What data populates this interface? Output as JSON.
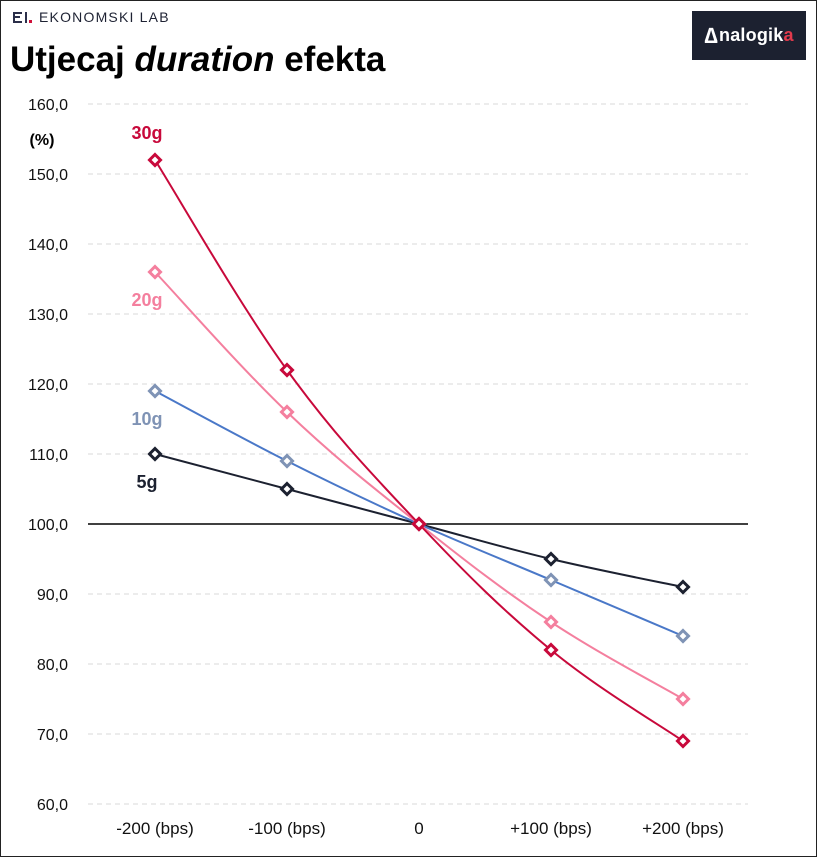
{
  "header": {
    "brand": "EKONOMSKI LAB",
    "title_part1": "Utjecaj ",
    "title_part2": "duration",
    "title_part3": " efekta",
    "logo_part1": "nalogik",
    "logo_part2": "a"
  },
  "chart_data": {
    "type": "line",
    "title": "Utjecaj duration efekta",
    "ylabel": "(%)",
    "categories": [
      "-200 (bps)",
      "-100 (bps)",
      "0",
      "+100 (bps)",
      "+200 (bps)"
    ],
    "ylim": [
      60,
      160
    ],
    "yticks": [
      60,
      70,
      80,
      90,
      100,
      110,
      120,
      130,
      140,
      150,
      160
    ],
    "ytick_labels": [
      "60,0",
      "70,0",
      "80,0",
      "90,0",
      "100,0",
      "110,0",
      "120,0",
      "130,0",
      "140,0",
      "150,0",
      "160,0"
    ],
    "reference_line": 100,
    "grid": "horizontal-dashed",
    "series": [
      {
        "name": "5g",
        "color": "#1c2130",
        "values": [
          110,
          105,
          100,
          95,
          91
        ]
      },
      {
        "name": "10g",
        "color": "#7f93b5",
        "line_color": "#4a78c8",
        "values": [
          119,
          109,
          100,
          92,
          84
        ]
      },
      {
        "name": "20g",
        "color": "#f47f9e",
        "values": [
          136,
          116,
          100,
          86,
          75
        ]
      },
      {
        "name": "30g",
        "color": "#c8093b",
        "values": [
          152,
          122,
          100,
          82,
          69
        ]
      }
    ]
  }
}
